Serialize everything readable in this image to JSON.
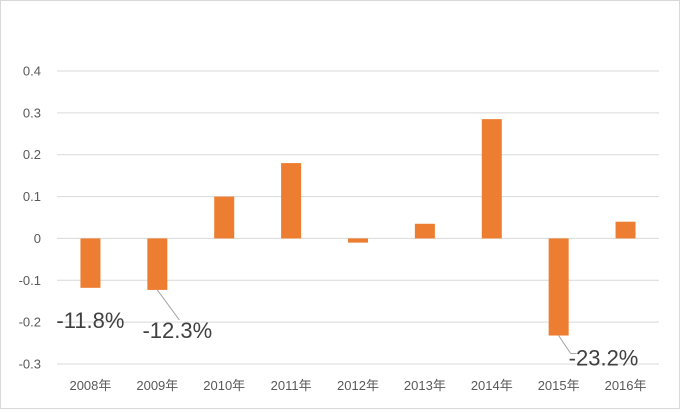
{
  "chart_data": {
    "type": "bar",
    "title": "",
    "xlabel": "",
    "ylabel": "",
    "categories": [
      "2008年",
      "2009年",
      "2010年",
      "2011年",
      "2012年",
      "2013年",
      "2014年",
      "2015年",
      "2016年"
    ],
    "values": [
      -0.118,
      -0.123,
      0.1,
      0.18,
      -0.01,
      0.035,
      0.285,
      -0.232,
      0.04
    ],
    "ylim": [
      -0.3,
      0.4
    ],
    "yticks": [
      "0.4",
      "0.3",
      "0.2",
      "0.1",
      "0",
      "-0.1",
      "-0.2",
      "-0.3"
    ],
    "ytick_values": [
      0.4,
      0.3,
      0.2,
      0.1,
      0,
      -0.1,
      -0.2,
      -0.3
    ],
    "grid": true,
    "legend": "none",
    "bar_color": "#ED7D31",
    "grid_color": "#D9D9D9",
    "annotations": [
      {
        "category": "2008年",
        "text": "-11.8%"
      },
      {
        "category": "2009年",
        "text": "-12.3%"
      },
      {
        "category": "2015年",
        "text": "-23.2%"
      }
    ]
  }
}
